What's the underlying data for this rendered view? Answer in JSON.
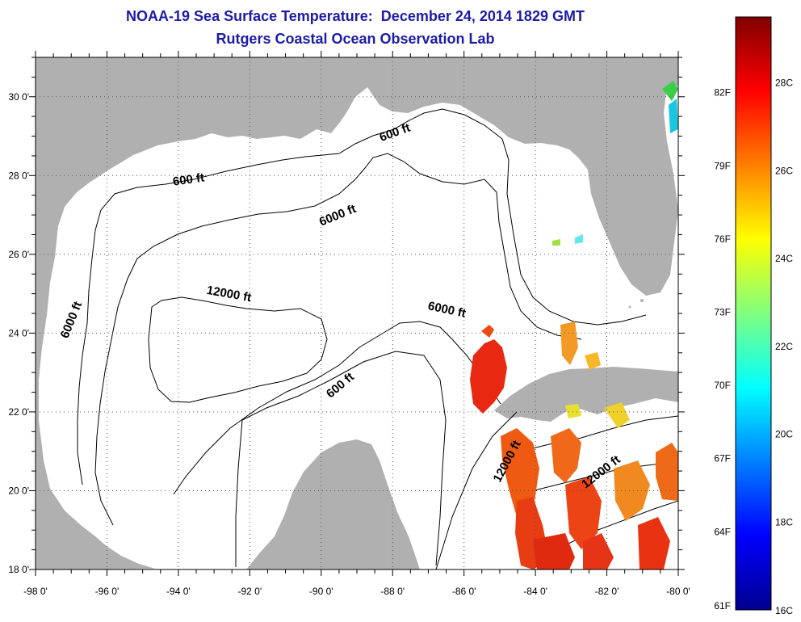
{
  "title_line1": "NOAA-19 Sea Surface Temperature:  December 24, 2014 1829 GMT",
  "title_line2": "Rutgers Coastal Ocean Observation Lab",
  "map": {
    "lon_range": [
      -98,
      -80
    ],
    "lat_range": [
      18,
      31
    ],
    "lon_ticks": [
      -98,
      -96,
      -94,
      -92,
      -90,
      -88,
      -86,
      -84,
      -82,
      -80
    ],
    "lat_ticks": [
      18,
      20,
      22,
      24,
      26,
      28,
      30
    ],
    "lon_tick_labels": [
      "-98 0'",
      "-96 0'",
      "-94 0'",
      "-92 0'",
      "-90 0'",
      "-88 0'",
      "-86 0'",
      "-84 0'",
      "-82 0'",
      "-80 0'"
    ],
    "lat_tick_labels": [
      "18 0'",
      "20 0'",
      "22 0'",
      "24 0'",
      "26 0'",
      "28 0'",
      "30 0'"
    ],
    "land_color": "#b0b0b0",
    "water_color": "#ffffff",
    "contour_labels": [
      {
        "text": "600 ft",
        "lon": -93.7,
        "lat": 27.8,
        "angle": -8
      },
      {
        "text": "600 ft",
        "lon": -87.9,
        "lat": 29.0,
        "angle": -20
      },
      {
        "text": "6000 ft",
        "lon": -89.5,
        "lat": 26.9,
        "angle": -22
      },
      {
        "text": "6000 ft",
        "lon": -96.9,
        "lat": 24.3,
        "angle": -68
      },
      {
        "text": "12000 ft",
        "lon": -92.6,
        "lat": 24.9,
        "angle": 10
      },
      {
        "text": "6000 ft",
        "lon": -86.5,
        "lat": 24.5,
        "angle": 12
      },
      {
        "text": "600 ft",
        "lon": -89.4,
        "lat": 22.6,
        "angle": -40
      },
      {
        "text": "12000 ft",
        "lon": -84.7,
        "lat": 20.7,
        "angle": -62
      },
      {
        "text": "12000 ft",
        "lon": -82.1,
        "lat": 20.4,
        "angle": -38
      }
    ]
  },
  "colorbar": {
    "colormap": "jet",
    "c_range": [
      16,
      29.5
    ],
    "celsius_ticks": [
      16,
      18,
      20,
      22,
      24,
      26,
      28
    ],
    "celsius_labels": [
      "16C",
      "18C",
      "20C",
      "22C",
      "24C",
      "26C",
      "28C"
    ],
    "fahrenheit_ticks": [
      61,
      64,
      67,
      70,
      73,
      76,
      79,
      82
    ],
    "fahrenheit_labels": [
      "61F",
      "64F",
      "67F",
      "70F",
      "73F",
      "76F",
      "79F",
      "82F"
    ]
  }
}
